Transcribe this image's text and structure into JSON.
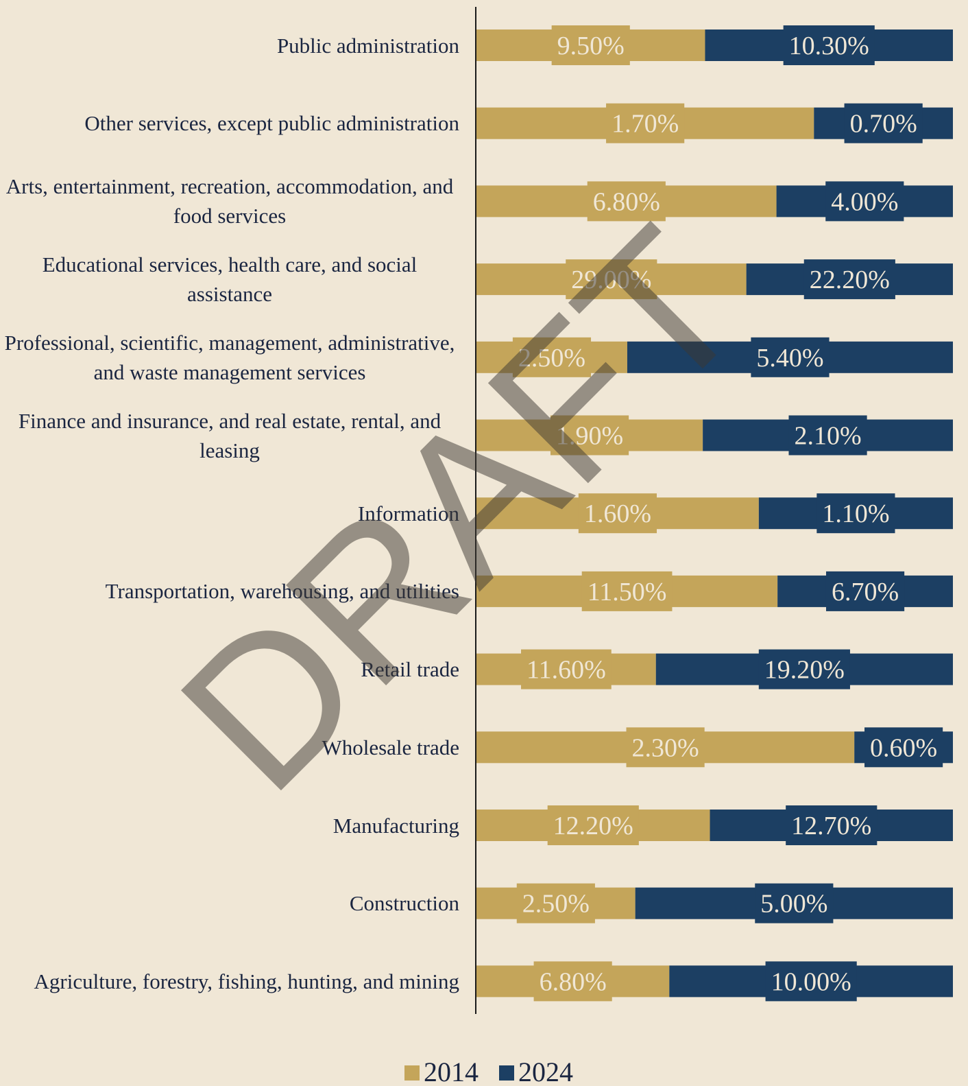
{
  "chart_data": {
    "type": "bar",
    "orientation": "horizontal",
    "stacking": "percent",
    "watermark": "DRAFT",
    "categories": [
      "Public administration",
      "Other services, except public administration",
      "Arts, entertainment, recreation, accommodation, and food services",
      "Educational services, health care, and social assistance",
      "Professional, scientific, management, administrative, and waste management services",
      "Finance and insurance, and real estate, rental, and leasing",
      "Information",
      "Transportation, warehousing, and utilities",
      "Retail trade",
      "Wholesale trade",
      "Manufacturing",
      "Construction",
      "Agriculture, forestry, fishing, hunting, and mining"
    ],
    "series": [
      {
        "name": "2014",
        "color": "#c4a55a",
        "values": [
          9.5,
          1.7,
          6.8,
          29.0,
          2.5,
          1.9,
          1.6,
          11.5,
          11.6,
          2.3,
          12.2,
          2.5,
          6.8
        ],
        "value_labels": [
          "9.50%",
          "1.70%",
          "6.80%",
          "29.00%",
          "2.50%",
          "1.90%",
          "1.60%",
          "11.50%",
          "11.60%",
          "2.30%",
          "12.20%",
          "2.50%",
          "6.80%"
        ]
      },
      {
        "name": "2024",
        "color": "#1c3f63",
        "values": [
          10.3,
          0.7,
          4.0,
          22.2,
          5.4,
          2.1,
          1.1,
          6.7,
          19.2,
          0.6,
          12.7,
          5.0,
          10.0
        ],
        "value_labels": [
          "10.30%",
          "0.70%",
          "4.00%",
          "22.20%",
          "5.40%",
          "2.10%",
          "1.10%",
          "6.70%",
          "19.20%",
          "0.60%",
          "12.70%",
          "5.00%",
          "10.00%"
        ]
      }
    ],
    "legend": "bottom"
  }
}
